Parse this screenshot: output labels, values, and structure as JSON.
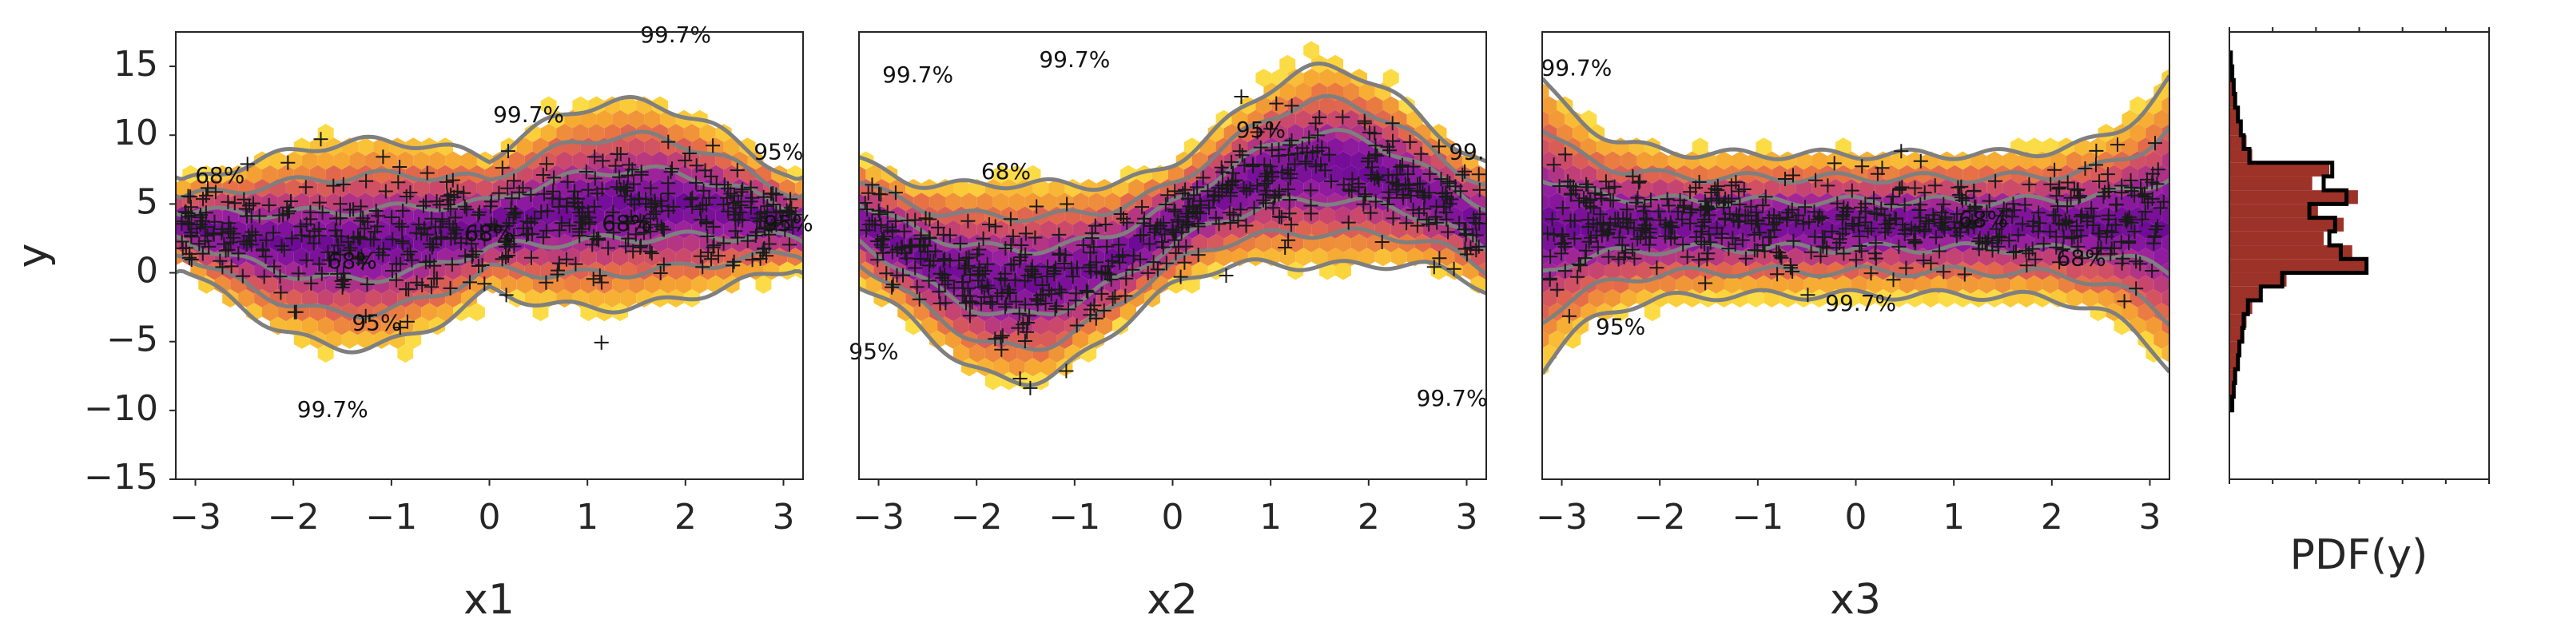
{
  "chart_data": [
    {
      "type": "hexbin-scatter-contour",
      "xlabel": "x1",
      "ylabel": "y",
      "xticks": [
        -3,
        -2,
        -1,
        0,
        1,
        2,
        3
      ],
      "yticks": [
        -15,
        -10,
        -5,
        0,
        5,
        10,
        15
      ],
      "xlim": [
        -3.2,
        3.2
      ],
      "ylim": [
        -15,
        17.5
      ],
      "contour_levels": [
        "68%",
        "95%",
        "99.7%"
      ],
      "contour_labels": [
        {
          "text": "68%",
          "x": -2.75,
          "y": 7.0
        },
        {
          "text": "68%",
          "x": -1.4,
          "y": 0.8
        },
        {
          "text": "68%",
          "x": 0.0,
          "y": 2.8
        },
        {
          "text": "68%",
          "x": 1.4,
          "y": 3.5
        },
        {
          "text": "95%",
          "x": -1.15,
          "y": -3.7
        },
        {
          "text": "95%",
          "x": 2.95,
          "y": 8.7
        },
        {
          "text": "95%",
          "x": 3.05,
          "y": 3.5
        },
        {
          "text": "99.7%",
          "x": 0.4,
          "y": 11.4
        },
        {
          "text": "99.7%",
          "x": 1.9,
          "y": 17.2
        },
        {
          "text": "99.7%",
          "x": -1.6,
          "y": -10.0
        }
      ]
    },
    {
      "type": "hexbin-scatter-contour",
      "xlabel": "x2",
      "ylabel": "",
      "xticks": [
        -3,
        -2,
        -1,
        0,
        1,
        2,
        3
      ],
      "xlim": [
        -3.2,
        3.2
      ],
      "ylim": [
        -15,
        17.5
      ],
      "contour_levels": [
        "68%",
        "95%",
        "99.7%"
      ],
      "contour_labels": [
        {
          "text": "99.7%",
          "x": -2.6,
          "y": 14.3
        },
        {
          "text": "99.7%",
          "x": -1.0,
          "y": 15.4
        },
        {
          "text": "95%",
          "x": 0.9,
          "y": 10.3
        },
        {
          "text": "68%",
          "x": -1.7,
          "y": 7.3
        },
        {
          "text": "99.",
          "x": 3.0,
          "y": 8.7
        },
        {
          "text": "95%",
          "x": -3.05,
          "y": -5.8
        },
        {
          "text": "99.7%",
          "x": 2.85,
          "y": -9.2
        }
      ]
    },
    {
      "type": "hexbin-scatter-contour",
      "xlabel": "x3",
      "ylabel": "",
      "xticks": [
        -3,
        -2,
        -1,
        0,
        1,
        2,
        3
      ],
      "xlim": [
        -3.2,
        3.2
      ],
      "ylim": [
        -15,
        17.5
      ],
      "contour_levels": [
        "68%",
        "95%",
        "99.7%"
      ],
      "contour_labels": [
        {
          "text": "99.7%",
          "x": -2.85,
          "y": 14.8
        },
        {
          "text": "68%",
          "x": 1.3,
          "y": 3.8
        },
        {
          "text": "68%",
          "x": 2.3,
          "y": 1.0
        },
        {
          "text": "99.7%",
          "x": 0.05,
          "y": -2.3
        },
        {
          "text": "95%",
          "x": -2.4,
          "y": -4.0
        }
      ]
    },
    {
      "type": "histogram",
      "xlabel": "PDF(y)",
      "ylim": [
        -15,
        17.5
      ],
      "bins": [
        -10,
        -9,
        -8,
        -7,
        -6,
        -5,
        -4,
        -3,
        -2,
        -1,
        0,
        1,
        2,
        3,
        4,
        5,
        6,
        7,
        8,
        9,
        10,
        11,
        12,
        13,
        14,
        15,
        16
      ],
      "observed_density": [
        0.02,
        0.03,
        0.05,
        0.06,
        0.07,
        0.1,
        0.12,
        0.16,
        0.23,
        0.4,
        0.96,
        0.86,
        0.66,
        0.8,
        0.62,
        0.9,
        0.58,
        0.7,
        0.16,
        0.12,
        0.09,
        0.07,
        0.05,
        0.04,
        0.02,
        0.01
      ],
      "model_density": [
        0.02,
        0.03,
        0.04,
        0.06,
        0.07,
        0.09,
        0.1,
        0.13,
        0.22,
        0.37,
        0.96,
        0.78,
        0.7,
        0.74,
        0.56,
        0.82,
        0.66,
        0.72,
        0.14,
        0.1,
        0.08,
        0.06,
        0.04,
        0.03,
        0.02,
        0.01
      ],
      "colors": {
        "observed_fill": "#9c3228",
        "model_step": "#000000"
      }
    }
  ]
}
